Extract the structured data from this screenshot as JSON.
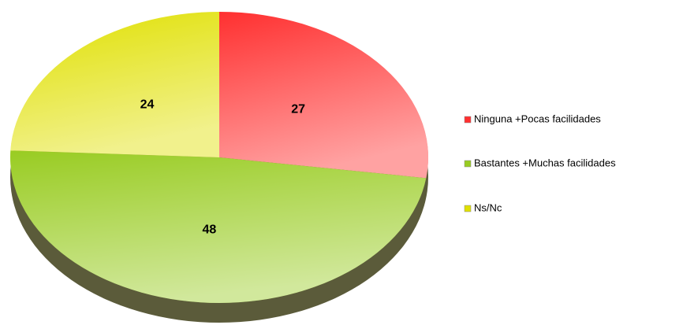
{
  "chart_data": {
    "type": "pie",
    "categories": [
      "Ninguna +Pocas facilidades",
      "Bastantes +Muchas facilidades",
      "Ns/Nc"
    ],
    "values": [
      27,
      48,
      24
    ],
    "colors": [
      "#ff3030",
      "#99cc22",
      "#e0e000"
    ],
    "legend": "right"
  }
}
